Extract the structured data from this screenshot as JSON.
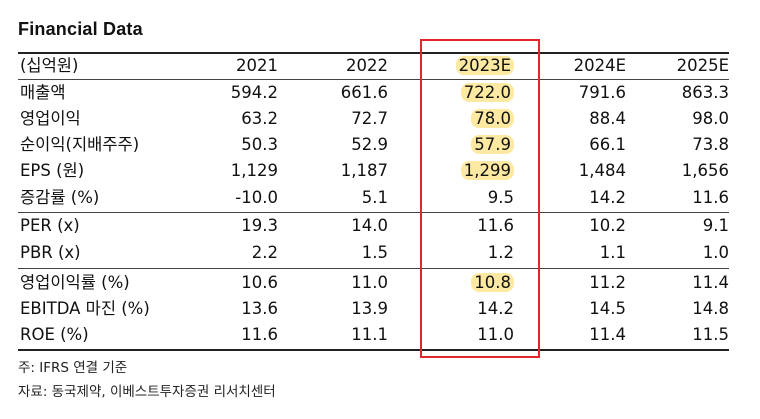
{
  "title": "Financial Data",
  "header": {
    "unit": "(십억원)",
    "years": [
      "2021",
      "2022",
      "2023E",
      "2024E",
      "2025E"
    ]
  },
  "rows": [
    {
      "label": "매출액",
      "values": [
        "594.2",
        "661.6",
        "722.0",
        "791.6",
        "863.3"
      ],
      "hl": true
    },
    {
      "label": "영업이익",
      "values": [
        "63.2",
        "72.7",
        "78.0",
        "88.4",
        "98.0"
      ],
      "hl": true
    },
    {
      "label": "순이익(지배주주)",
      "values": [
        "50.3",
        "52.9",
        "57.9",
        "66.1",
        "73.8"
      ],
      "hl": true
    },
    {
      "label": "EPS (원)",
      "values": [
        "1,129",
        "1,187",
        "1,299",
        "1,484",
        "1,656"
      ],
      "hl": true
    },
    {
      "label": "증감률 (%)",
      "values": [
        "-10.0",
        "5.1",
        "9.5",
        "14.2",
        "11.6"
      ],
      "hl": false
    },
    {
      "label": "PER (x)",
      "values": [
        "19.3",
        "14.0",
        "11.6",
        "10.2",
        "9.1"
      ],
      "hl": false
    },
    {
      "label": "PBR (x)",
      "values": [
        "2.2",
        "1.5",
        "1.2",
        "1.1",
        "1.0"
      ],
      "hl": false
    },
    {
      "label": "영업이익률 (%)",
      "values": [
        "10.6",
        "11.0",
        "10.8",
        "11.2",
        "11.4"
      ],
      "hl": true
    },
    {
      "label": "EBITDA 마진 (%)",
      "values": [
        "13.6",
        "13.9",
        "14.2",
        "14.5",
        "14.8"
      ],
      "hl": false
    },
    {
      "label": "ROE (%)",
      "values": [
        "11.6",
        "11.1",
        "11.0",
        "11.4",
        "11.5"
      ],
      "hl": false
    }
  ],
  "notes": {
    "footnote": "주: IFRS 연결 기준",
    "source": "자료: 동국제약, 이베스트투자증권 리서치센터"
  },
  "colors": {
    "highlight": "#fde9a2",
    "box": "#e3262b"
  }
}
